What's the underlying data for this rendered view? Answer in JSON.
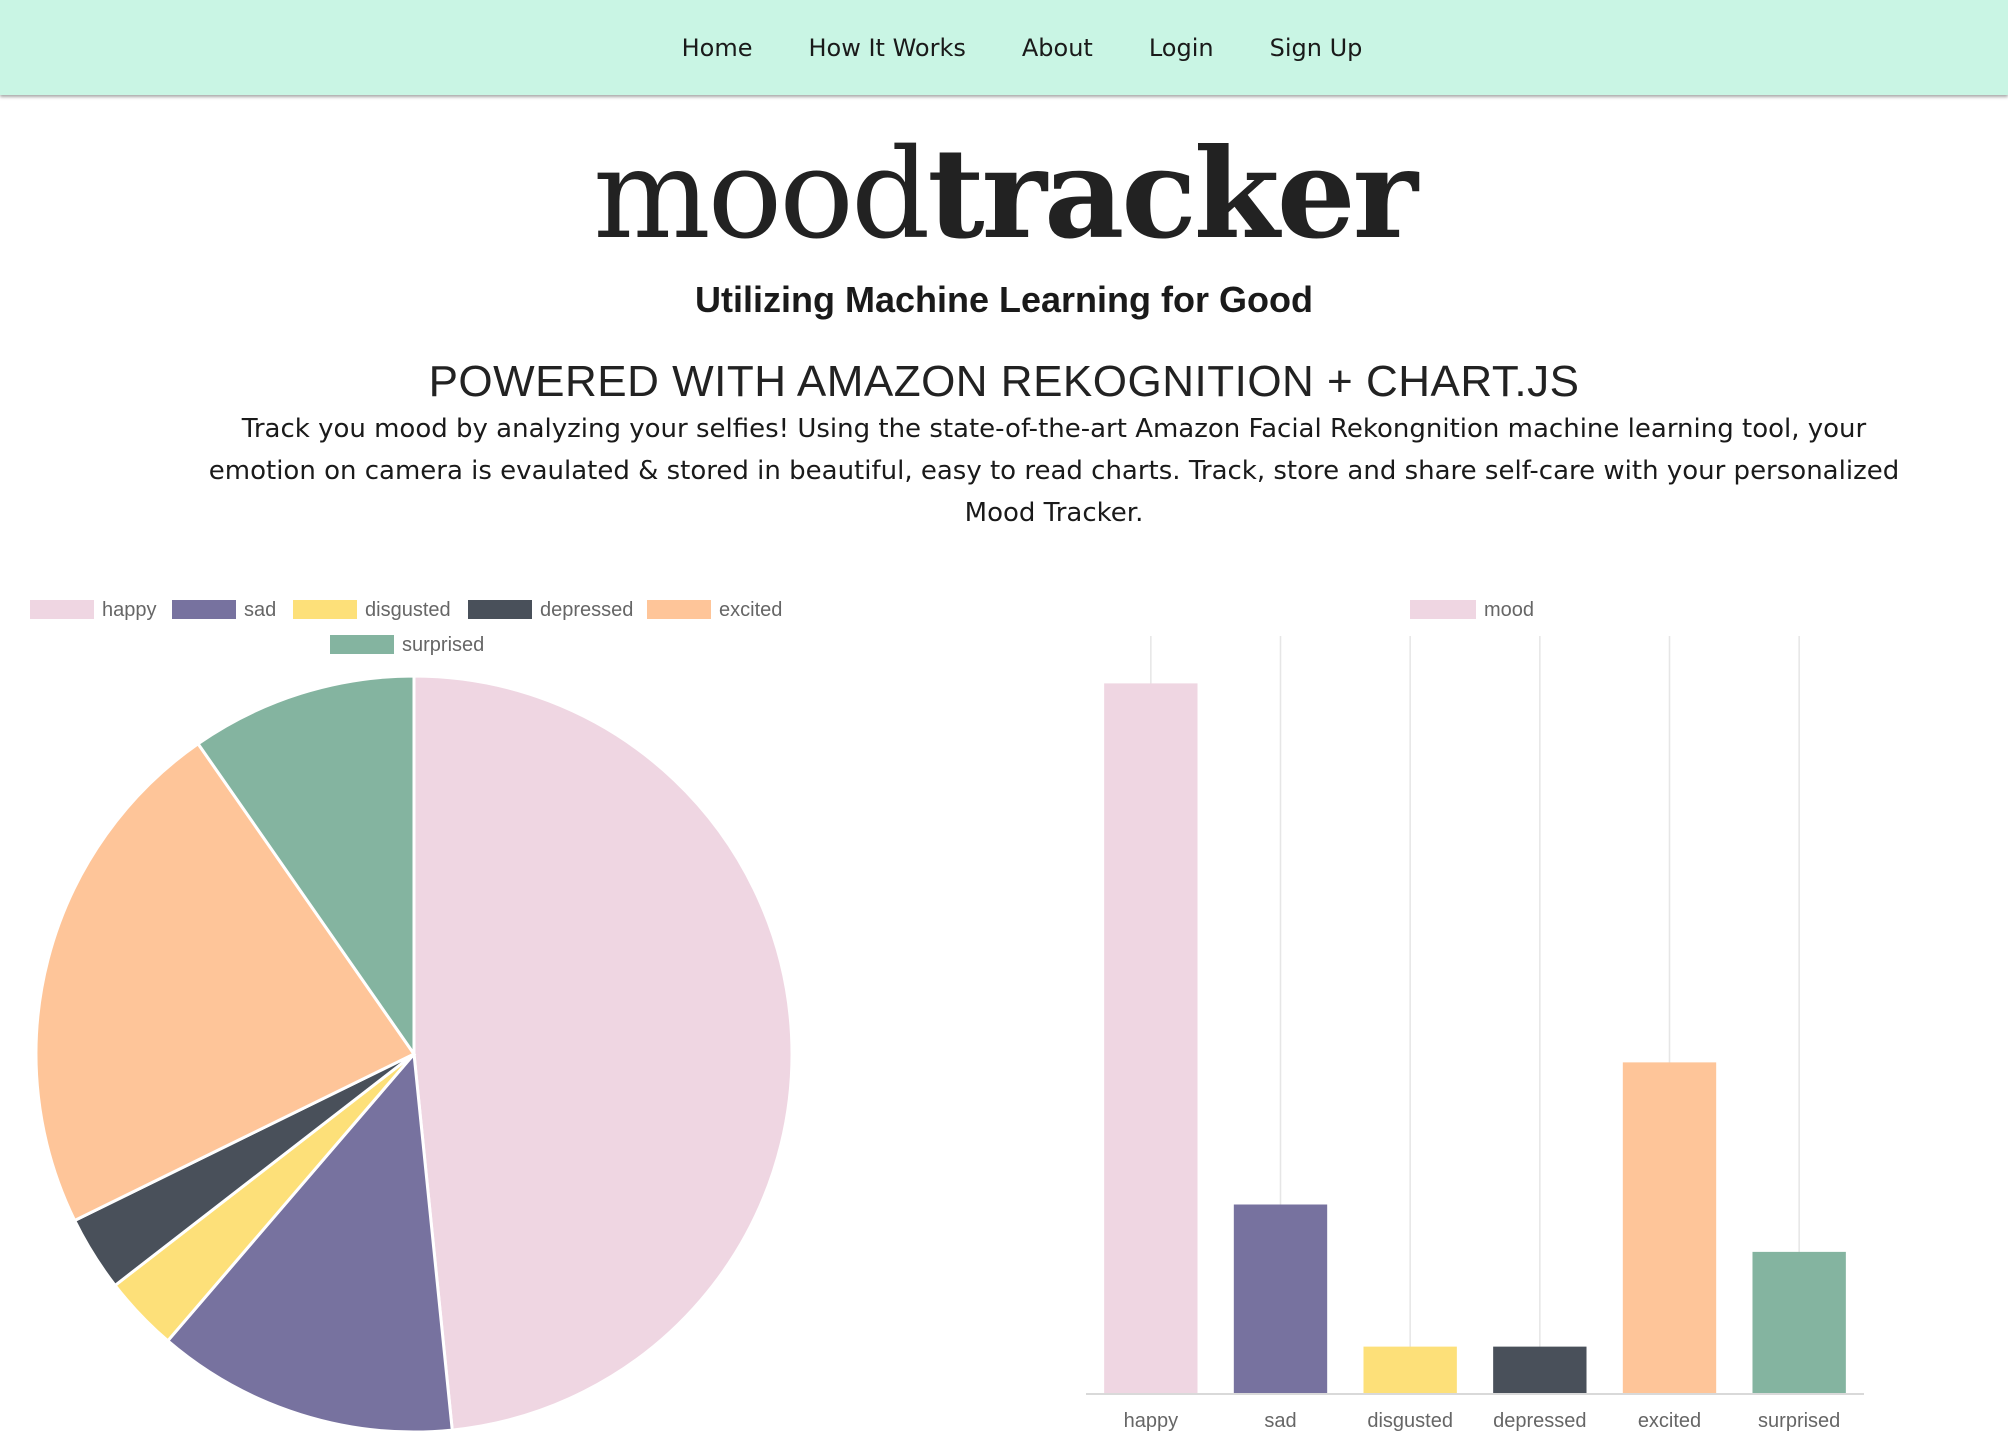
{
  "nav": {
    "items": [
      "Home",
      "How It Works",
      "About",
      "Login",
      "Sign Up"
    ]
  },
  "logo": {
    "light": "mood",
    "bold": "tracker"
  },
  "tagline": "Utilizing Machine Learning for Good",
  "powered": "POWERED WITH AMAZON REKOGNITION + CHART.JS",
  "description": "Track you mood by analyzing your selfies! Using the state-of-the-art Amazon Facial Rekongnition machine learning tool, your emotion on camera is evaulated & stored in beautiful, easy to read charts. Track, store and share self-care with your personalized Mood Tracker.",
  "colors": {
    "navbar": "#c9f5e4",
    "happy": "#efd6e2",
    "sad": "#77729f",
    "disgusted": "#fde079",
    "depressed": "#49505a",
    "excited": "#fec599",
    "surprised": "#84b4a0"
  },
  "chart_data": [
    {
      "type": "pie",
      "categories": [
        "happy",
        "sad",
        "disgusted",
        "depressed",
        "excited",
        "surprised"
      ],
      "values": [
        15,
        4,
        1,
        1,
        7,
        3
      ],
      "colors": [
        "#efd6e2",
        "#77729f",
        "#fde079",
        "#49505a",
        "#fec599",
        "#84b4a0"
      ],
      "legend": "top"
    },
    {
      "type": "bar",
      "categories": [
        "happy",
        "sad",
        "disgusted",
        "depressed",
        "excited",
        "surprised"
      ],
      "series": [
        {
          "name": "mood",
          "values": [
            15,
            4,
            1,
            1,
            7,
            3
          ]
        }
      ],
      "colors": [
        "#efd6e2",
        "#77729f",
        "#fde079",
        "#49505a",
        "#fec599",
        "#84b4a0"
      ],
      "ylim": [
        0,
        16
      ],
      "grid": true,
      "legend": "top"
    }
  ]
}
